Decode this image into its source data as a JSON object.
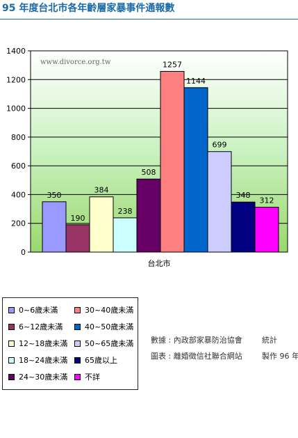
{
  "page": {
    "title": "95 年度台北市各年齡層家暴事件通報數"
  },
  "chart_data": {
    "type": "bar",
    "title": "",
    "xlabel": "",
    "ylabel": "",
    "categories": [
      "台北市"
    ],
    "ylim": [
      0,
      1400
    ],
    "yticks": [
      0,
      200,
      400,
      600,
      800,
      1000,
      1200,
      1400
    ],
    "grid": true,
    "watermark": "www.divorce.org.tw",
    "legend_position": "bottom-left",
    "series": [
      {
        "name": "0~6歲未滿",
        "values": [
          350
        ],
        "color": "#9999ff"
      },
      {
        "name": "6~12歲未滿",
        "values": [
          190
        ],
        "color": "#993366"
      },
      {
        "name": "12~18歲未滿",
        "values": [
          384
        ],
        "color": "#ffffcc"
      },
      {
        "name": "18~24歲未滿",
        "values": [
          238
        ],
        "color": "#ccffff"
      },
      {
        "name": "24~30歲未滿",
        "values": [
          508
        ],
        "color": "#660066"
      },
      {
        "name": "30~40歲未滿",
        "values": [
          1257
        ],
        "color": "#ff8080"
      },
      {
        "name": "40~50歲未滿",
        "values": [
          1144
        ],
        "color": "#0066cc"
      },
      {
        "name": "50~65歲未滿",
        "values": [
          699
        ],
        "color": "#ccccff"
      },
      {
        "name": "65歲以上",
        "values": [
          348
        ],
        "color": "#000080"
      },
      {
        "name": "不詳",
        "values": [
          312
        ],
        "color": "#ff00ff"
      }
    ],
    "legend_columns": [
      [
        0,
        1,
        2,
        3,
        4
      ],
      [
        5,
        6,
        7,
        8,
        9
      ]
    ],
    "plot_background": [
      "#ffffff",
      "#c9f2c0",
      "#9bd86e"
    ]
  },
  "sources": [
    {
      "label": "數據 : 內政部家暴防治協會",
      "value": "統計"
    },
    {
      "label": "圖表 : 離婚徵信社聯合網站",
      "value": "製作 96 年"
    }
  ]
}
